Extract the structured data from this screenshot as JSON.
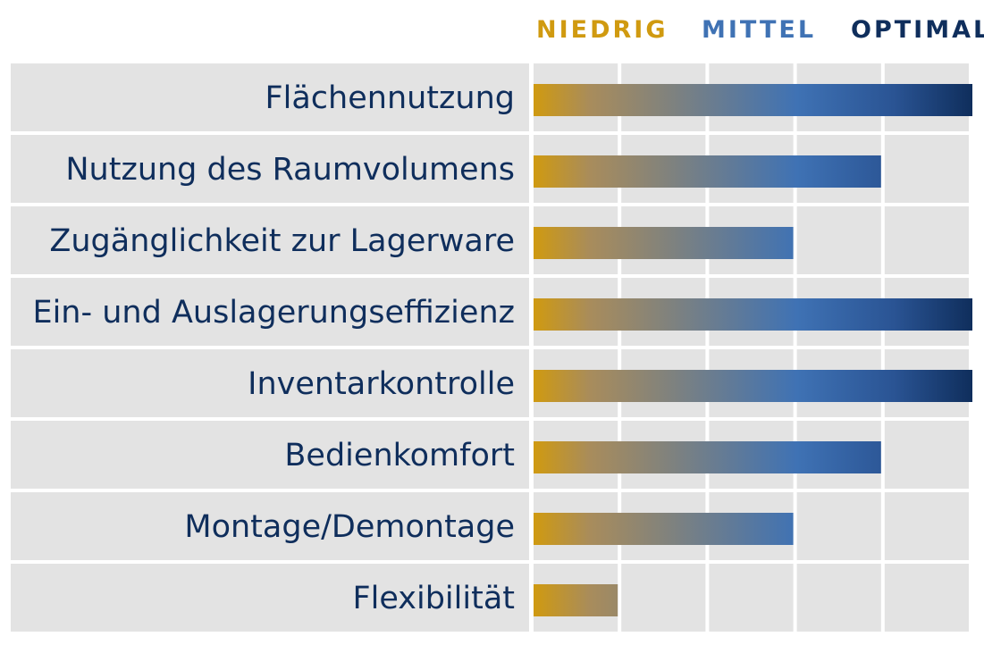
{
  "chart_data": {
    "type": "bar",
    "orientation": "horizontal",
    "scale_labels": [
      "NIEDRIG",
      "MITTEL",
      "OPTIMAL"
    ],
    "scale_label_colors": [
      "#d09a10",
      "#3f72b4",
      "#0f2e5c"
    ],
    "categories": [
      "Flächennutzung",
      "Nutzung des Raumvolumens",
      "Zugänglichkeit zur Lagerware",
      "Ein- und Auslagerungseffizienz",
      "Inventarkontrolle",
      "Bedienkomfort",
      "Montage/Demontage",
      "Flexibilität"
    ],
    "values": [
      5,
      4,
      3,
      5,
      5,
      4,
      3,
      1
    ],
    "xlim": [
      0,
      5
    ],
    "grid": true,
    "gradient_colors": [
      "#d09a10",
      "#3f72b4",
      "#0f2e5c"
    ]
  }
}
